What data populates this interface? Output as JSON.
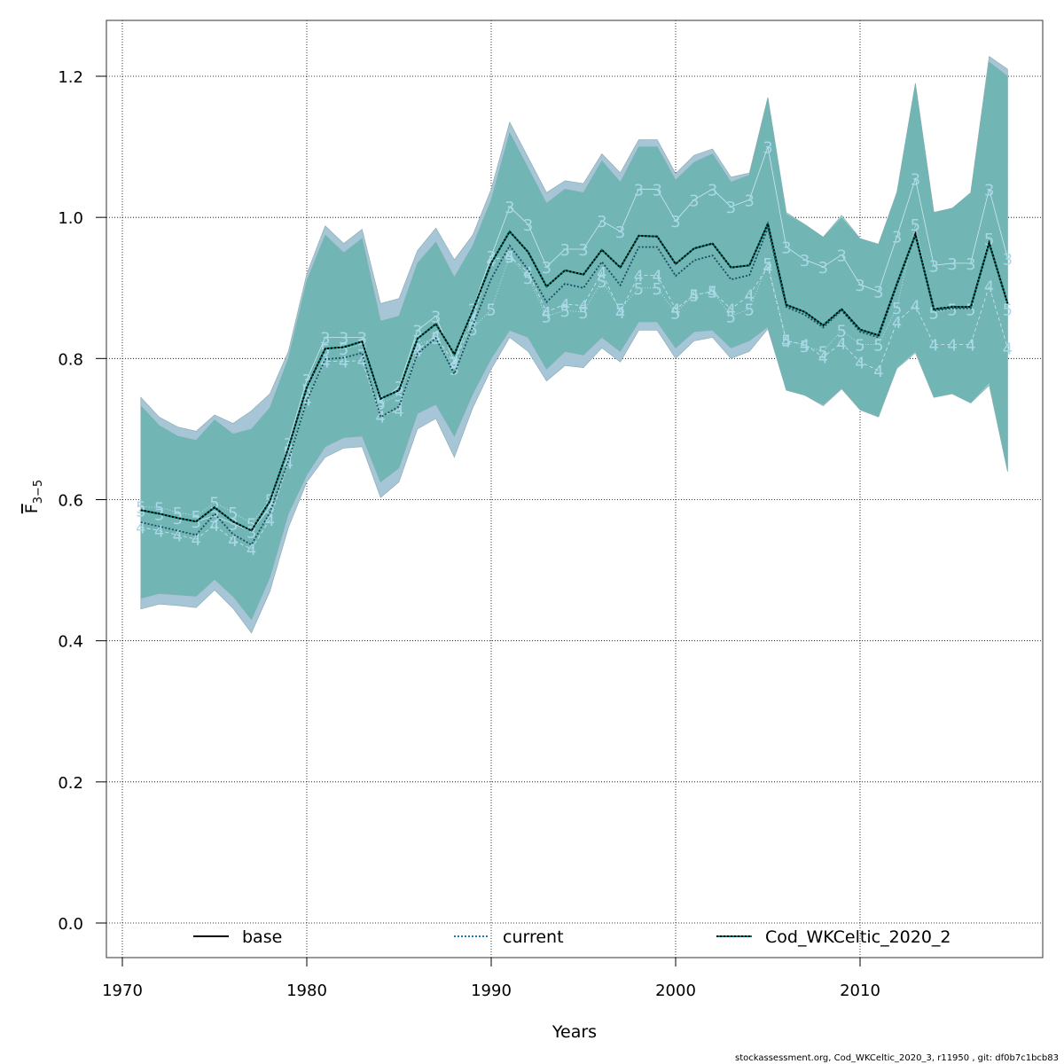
{
  "chart_data": {
    "type": "line",
    "title": "",
    "xlabel": "Years",
    "ylabel_main": "F",
    "ylabel_sub": "3−5",
    "xlim": [
      1969.2,
      2019.6
    ],
    "ylim": [
      -0.05,
      1.27
    ],
    "xticks": [
      1970,
      1980,
      1990,
      2000,
      2010
    ],
    "xtick_labels": [
      "1970",
      "1980",
      "1990",
      "2000",
      "2010"
    ],
    "yticks": [
      0.0,
      0.2,
      0.4,
      0.6,
      0.8,
      1.0,
      1.2
    ],
    "ytick_labels": [
      "0.0",
      "0.2",
      "0.4",
      "0.6",
      "0.8",
      "1.0",
      "1.2"
    ],
    "grid": true,
    "legend_position": "bottom",
    "x": [
      1971,
      1972,
      1973,
      1974,
      1975,
      1976,
      1977,
      1978,
      1979,
      1980,
      1981,
      1982,
      1983,
      1984,
      1985,
      1986,
      1987,
      1988,
      1989,
      1990,
      1991,
      1992,
      1993,
      1994,
      1995,
      1996,
      1997,
      1998,
      1999,
      2000,
      2001,
      2002,
      2003,
      2004,
      2005,
      2006,
      2007,
      2008,
      2009,
      2010,
      2011,
      2012,
      2013,
      2014,
      2015,
      2016,
      2017,
      2018
    ],
    "series": [
      {
        "name": "base",
        "color": "#000000",
        "style": "solid",
        "values": [
          0.585,
          0.58,
          0.574,
          0.569,
          0.589,
          0.569,
          0.556,
          0.598,
          0.673,
          0.759,
          0.814,
          0.816,
          0.824,
          0.743,
          0.755,
          0.828,
          0.849,
          0.806,
          0.868,
          0.935,
          0.98,
          0.951,
          0.902,
          0.925,
          0.919,
          0.954,
          0.929,
          0.974,
          0.973,
          0.934,
          0.956,
          0.963,
          0.929,
          0.932,
          0.991,
          0.876,
          0.866,
          0.847,
          0.87,
          0.841,
          0.833,
          0.906,
          0.976,
          0.87,
          0.873,
          0.873,
          0.964,
          0.878
        ],
        "upper": [
          0.733,
          0.705,
          0.69,
          0.684,
          0.713,
          0.693,
          0.7,
          0.73,
          0.8,
          0.91,
          0.975,
          0.95,
          0.97,
          0.853,
          0.86,
          0.935,
          0.965,
          0.915,
          0.96,
          1.025,
          1.12,
          1.07,
          1.02,
          1.04,
          1.035,
          1.08,
          1.05,
          1.1,
          1.1,
          1.053,
          1.078,
          1.09,
          1.05,
          1.06,
          1.17,
          1.007,
          0.99,
          0.972,
          1.003,
          0.97,
          0.962,
          1.036,
          1.19,
          1.007,
          1.013,
          1.035,
          1.22,
          1.2
        ],
        "lower": [
          0.46,
          0.467,
          0.465,
          0.463,
          0.487,
          0.463,
          0.43,
          0.49,
          0.58,
          0.635,
          0.675,
          0.688,
          0.69,
          0.625,
          0.645,
          0.722,
          0.735,
          0.69,
          0.75,
          0.8,
          0.84,
          0.83,
          0.785,
          0.81,
          0.805,
          0.83,
          0.81,
          0.852,
          0.852,
          0.815,
          0.838,
          0.84,
          0.815,
          0.825,
          0.845,
          0.755,
          0.748,
          0.735,
          0.758,
          0.728,
          0.718,
          0.786,
          0.808,
          0.745,
          0.75,
          0.737,
          0.762,
          0.64
        ]
      },
      {
        "name": "current",
        "color": "#1f77b4",
        "style": "dotted",
        "values": [
          0.568,
          0.562,
          0.556,
          0.55,
          0.58,
          0.551,
          0.536,
          0.582,
          0.655,
          0.74,
          0.799,
          0.801,
          0.808,
          0.717,
          0.732,
          0.807,
          0.829,
          0.778,
          0.846,
          0.913,
          0.96,
          0.926,
          0.88,
          0.906,
          0.9,
          0.937,
          0.904,
          0.958,
          0.958,
          0.917,
          0.939,
          0.946,
          0.912,
          0.918,
          0.985,
          0.873,
          0.862,
          0.844,
          0.868,
          0.838,
          0.83,
          0.904,
          0.974,
          0.868,
          0.871,
          0.871,
          0.962,
          0.876
        ],
        "upper": [
          0.745,
          0.717,
          0.703,
          0.697,
          0.72,
          0.708,
          0.726,
          0.75,
          0.81,
          0.92,
          0.988,
          0.963,
          0.983,
          0.878,
          0.885,
          0.953,
          0.985,
          0.94,
          0.975,
          1.04,
          1.135,
          1.085,
          1.035,
          1.052,
          1.048,
          1.09,
          1.063,
          1.11,
          1.11,
          1.062,
          1.088,
          1.097,
          1.057,
          1.063,
          1.17,
          1.005,
          0.99,
          0.972,
          1.0,
          0.97,
          0.962,
          1.035,
          1.19,
          1.007,
          1.013,
          1.035,
          1.228,
          1.21
        ],
        "lower": [
          0.445,
          0.452,
          0.45,
          0.447,
          0.472,
          0.446,
          0.411,
          0.47,
          0.56,
          0.625,
          0.66,
          0.673,
          0.675,
          0.603,
          0.625,
          0.7,
          0.715,
          0.66,
          0.73,
          0.785,
          0.83,
          0.81,
          0.768,
          0.79,
          0.787,
          0.815,
          0.795,
          0.84,
          0.84,
          0.8,
          0.825,
          0.83,
          0.8,
          0.81,
          0.842,
          0.755,
          0.748,
          0.733,
          0.757,
          0.727,
          0.717,
          0.787,
          0.81,
          0.745,
          0.75,
          0.737,
          0.765,
          0.64
        ]
      },
      {
        "name": "Cod_WKCeltic_2020_2",
        "color": "#00796b",
        "style": "dotted",
        "values": [
          0.585,
          0.58,
          0.574,
          0.569,
          0.589,
          0.569,
          0.556,
          0.598,
          0.673,
          0.759,
          0.814,
          0.816,
          0.824,
          0.743,
          0.755,
          0.828,
          0.849,
          0.806,
          0.868,
          0.935,
          0.98,
          0.951,
          0.902,
          0.925,
          0.919,
          0.954,
          0.929,
          0.974,
          0.973,
          0.934,
          0.956,
          0.963,
          0.929,
          0.932,
          0.991,
          0.876,
          0.866,
          0.847,
          0.87,
          0.841,
          0.833,
          0.906,
          0.976,
          0.87,
          0.873,
          0.873,
          0.964,
          0.878
        ]
      }
    ],
    "age_labels": {
      "color": "#a8d8e6",
      "ages": [
        "3",
        "4",
        "5"
      ],
      "age3": [
        0.585,
        0.58,
        0.574,
        0.569,
        0.577,
        0.566,
        0.555,
        0.59,
        0.68,
        0.77,
        0.83,
        0.83,
        0.83,
        0.74,
        0.76,
        0.84,
        0.86,
        0.795,
        0.87,
        0.945,
        1.015,
        0.99,
        0.93,
        0.955,
        0.955,
        0.995,
        0.98,
        1.04,
        1.04,
        0.995,
        1.025,
        1.04,
        1.015,
        1.025,
        1.1,
        0.958,
        0.94,
        0.93,
        0.947,
        0.905,
        0.895,
        0.973,
        1.055,
        0.932,
        0.935,
        0.935,
        1.04,
        0.942
      ],
      "age4": [
        0.561,
        0.556,
        0.55,
        0.544,
        0.564,
        0.543,
        0.53,
        0.572,
        0.653,
        0.742,
        0.796,
        0.796,
        0.797,
        0.718,
        0.727,
        0.812,
        0.832,
        0.793,
        0.855,
        0.94,
        0.945,
        0.922,
        0.866,
        0.877,
        0.875,
        0.922,
        0.866,
        0.918,
        0.918,
        0.87,
        0.89,
        0.895,
        0.87,
        0.89,
        0.93,
        0.825,
        0.82,
        0.802,
        0.822,
        0.795,
        0.783,
        0.852,
        0.875,
        0.82,
        0.82,
        0.82,
        0.903,
        0.815
      ],
      "age5": [
        0.59,
        0.589,
        0.582,
        0.577,
        0.596,
        0.582,
        0.566,
        0.6,
        0.668,
        0.755,
        0.813,
        0.814,
        0.82,
        0.737,
        0.748,
        0.82,
        0.83,
        0.786,
        0.842,
        0.87,
        0.945,
        0.915,
        0.86,
        0.868,
        0.866,
        0.91,
        0.87,
        0.9,
        0.9,
        0.865,
        0.89,
        0.895,
        0.86,
        0.87,
        0.935,
        0.826,
        0.818,
        0.81,
        0.84,
        0.82,
        0.82,
        0.872,
        0.99,
        0.865,
        0.87,
        0.87,
        0.97,
        0.87
      ]
    }
  },
  "legend": {
    "items": [
      {
        "label": "base",
        "color": "#000000",
        "style": "solid"
      },
      {
        "label": "current",
        "color": "#1f77b4",
        "style": "dotted"
      },
      {
        "label": "Cod_WKCeltic_2020_2",
        "color": "#00796b",
        "style": "dotted"
      }
    ]
  },
  "colors": {
    "band_current": "#a6c5d6",
    "band_base": "#a0d4ca",
    "band_overlap": "#72b5b5"
  },
  "footer": "stockassessment.org, Cod_WKCeltic_2020_3, r11950 , git: df0b7c1bcb83"
}
